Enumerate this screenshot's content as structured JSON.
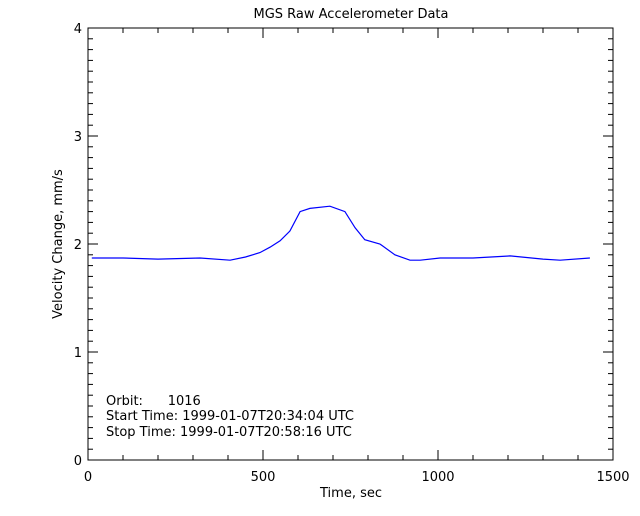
{
  "chart_data": {
    "type": "line",
    "title": "MGS Raw Accelerometer Data",
    "xlabel": "Time, sec",
    "ylabel": "Velocity Change, mm/s",
    "xlim": [
      0,
      1500
    ],
    "ylim": [
      0,
      4
    ],
    "xticks": [
      0,
      500,
      1000,
      1500
    ],
    "yticks": [
      0,
      1,
      2,
      3,
      4
    ],
    "x_minor_step": 100,
    "y_minor_step": 0.1,
    "grid": false,
    "line_color": "#0000ff",
    "series": [
      {
        "x": [
          11,
          100,
          200,
          320,
          406,
          450,
          491,
          520,
          549,
          577,
          606,
          634,
          691,
          734,
          763,
          791,
          834,
          877,
          920,
          949,
          1006,
          1100,
          1206,
          1300,
          1349,
          1434
        ],
        "y": [
          1.87,
          1.87,
          1.86,
          1.87,
          1.85,
          1.88,
          1.92,
          1.97,
          2.03,
          2.12,
          2.3,
          2.33,
          2.35,
          2.3,
          2.15,
          2.04,
          2.0,
          1.9,
          1.85,
          1.85,
          1.87,
          1.87,
          1.89,
          1.86,
          1.85,
          1.87
        ]
      }
    ],
    "annotations": [
      "Orbit:      1016",
      "Start Time: 1999-01-07T20:34:04 UTC",
      "Stop Time: 1999-01-07T20:58:16 UTC"
    ]
  }
}
